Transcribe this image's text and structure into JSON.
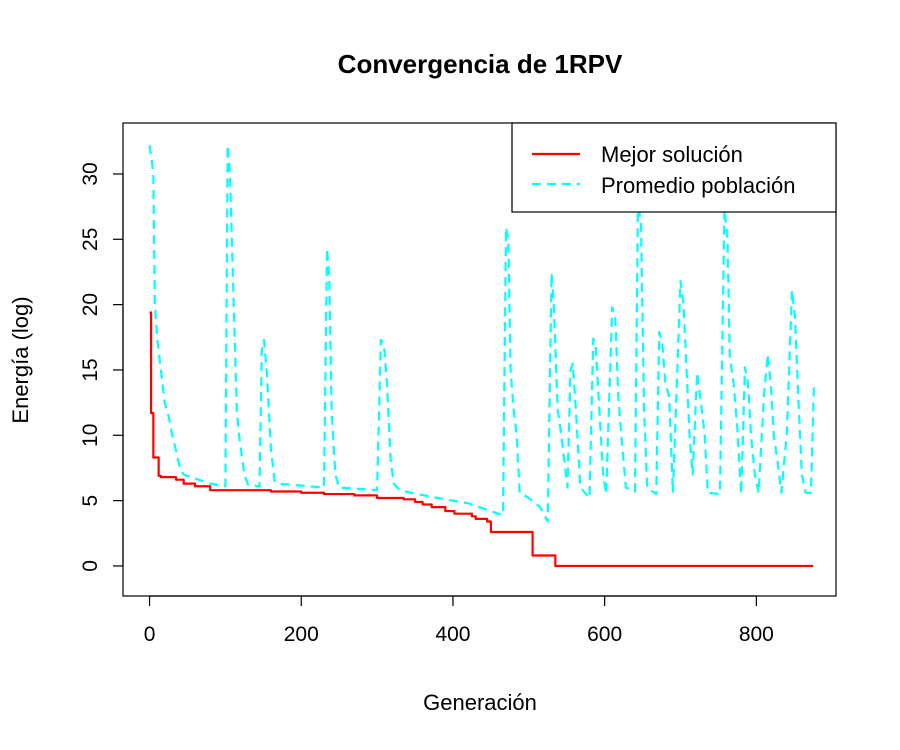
{
  "chart_data": {
    "type": "line",
    "title": "Convergencia de 1RPV",
    "xlabel": "Generación",
    "ylabel": "Energía (log)",
    "xlim": [
      -35,
      905
    ],
    "ylim": [
      -2.3,
      33.9
    ],
    "xticks": [
      0,
      200,
      400,
      600,
      800
    ],
    "yticks": [
      0,
      5,
      10,
      15,
      20,
      25,
      30
    ],
    "legend_position": "top-right",
    "series": [
      {
        "name": "Mejor solución",
        "color": "#ff0000",
        "style": "solid",
        "step": true,
        "points": [
          [
            0,
            19.4
          ],
          [
            2,
            11.7
          ],
          [
            5,
            8.3
          ],
          [
            12,
            6.9
          ],
          [
            15,
            6.8
          ],
          [
            35,
            6.6
          ],
          [
            45,
            6.3
          ],
          [
            60,
            6.1
          ],
          [
            80,
            5.8
          ],
          [
            130,
            5.8
          ],
          [
            160,
            5.7
          ],
          [
            200,
            5.6
          ],
          [
            230,
            5.5
          ],
          [
            270,
            5.4
          ],
          [
            300,
            5.2
          ],
          [
            335,
            5.1
          ],
          [
            350,
            4.9
          ],
          [
            360,
            4.7
          ],
          [
            372,
            4.5
          ],
          [
            390,
            4.2
          ],
          [
            402,
            4.0
          ],
          [
            425,
            3.8
          ],
          [
            430,
            3.6
          ],
          [
            445,
            3.4
          ],
          [
            450,
            2.6
          ],
          [
            460,
            2.6
          ],
          [
            500,
            2.6
          ],
          [
            505,
            0.8
          ],
          [
            530,
            0.8
          ],
          [
            535,
            0.0
          ],
          [
            875,
            0.0
          ]
        ]
      },
      {
        "name": "Promedio población",
        "color": "#00ffff",
        "style": "dashed",
        "step": false,
        "points": [
          [
            0,
            32.2
          ],
          [
            3,
            31
          ],
          [
            5,
            30
          ],
          [
            7,
            20
          ],
          [
            10,
            17.5
          ],
          [
            15,
            15
          ],
          [
            20,
            12.5
          ],
          [
            25,
            11.5
          ],
          [
            30,
            10
          ],
          [
            35,
            8.8
          ],
          [
            40,
            7.5
          ],
          [
            45,
            7
          ],
          [
            60,
            6.7
          ],
          [
            80,
            6.3
          ],
          [
            100,
            6.1
          ],
          [
            103,
            32.2
          ],
          [
            106,
            30
          ],
          [
            110,
            22
          ],
          [
            115,
            12
          ],
          [
            118,
            10
          ],
          [
            125,
            7
          ],
          [
            130,
            6.2
          ],
          [
            145,
            6.1
          ],
          [
            148,
            16.5
          ],
          [
            151,
            17.3
          ],
          [
            155,
            14.5
          ],
          [
            160,
            9
          ],
          [
            165,
            6.5
          ],
          [
            170,
            6.3
          ],
          [
            230,
            6.0
          ],
          [
            234,
            24.3
          ],
          [
            237,
            22
          ],
          [
            240,
            12
          ],
          [
            245,
            7
          ],
          [
            250,
            6.0
          ],
          [
            300,
            5.8
          ],
          [
            305,
            17.3
          ],
          [
            309,
            17.0
          ],
          [
            313,
            14
          ],
          [
            318,
            8
          ],
          [
            322,
            6.3
          ],
          [
            330,
            5.8
          ],
          [
            345,
            5.6
          ],
          [
            380,
            5.2
          ],
          [
            400,
            5.0
          ],
          [
            420,
            4.8
          ],
          [
            440,
            4.4
          ],
          [
            460,
            4.0
          ],
          [
            466,
            3.9
          ],
          [
            470,
            25.9
          ],
          [
            473,
            25
          ],
          [
            476,
            15
          ],
          [
            480,
            12
          ],
          [
            484,
            10
          ],
          [
            488,
            5.6
          ],
          [
            500,
            5.2
          ],
          [
            515,
            4.5
          ],
          [
            525,
            3.4
          ],
          [
            530,
            22.4
          ],
          [
            533,
            20
          ],
          [
            538,
            12
          ],
          [
            543,
            10
          ],
          [
            547,
            8
          ],
          [
            551,
            6
          ],
          [
            555,
            15
          ],
          [
            558,
            15.5
          ],
          [
            562,
            12
          ],
          [
            568,
            6
          ],
          [
            580,
            5.2
          ],
          [
            585,
            17.4
          ],
          [
            588,
            17
          ],
          [
            592,
            13
          ],
          [
            598,
            7
          ],
          [
            602,
            5.5
          ],
          [
            610,
            19.8
          ],
          [
            614,
            19
          ],
          [
            618,
            13
          ],
          [
            622,
            10
          ],
          [
            628,
            6.0
          ],
          [
            640,
            5.7
          ],
          [
            644,
            28
          ],
          [
            648,
            26
          ],
          [
            652,
            12
          ],
          [
            656,
            6
          ],
          [
            668,
            5.5
          ],
          [
            672,
            17.9
          ],
          [
            676,
            17
          ],
          [
            680,
            14
          ],
          [
            685,
            13
          ],
          [
            690,
            5.6
          ],
          [
            700,
            21.8
          ],
          [
            704,
            20
          ],
          [
            708,
            15
          ],
          [
            712,
            10
          ],
          [
            716,
            7
          ],
          [
            722,
            14.8
          ],
          [
            728,
            12
          ],
          [
            732,
            10
          ],
          [
            736,
            5.6
          ],
          [
            752,
            5.5
          ],
          [
            758,
            27.3
          ],
          [
            762,
            25
          ],
          [
            765,
            16
          ],
          [
            770,
            14
          ],
          [
            775,
            10.5
          ],
          [
            780,
            5.5
          ],
          [
            785,
            15.2
          ],
          [
            789,
            14
          ],
          [
            793,
            10
          ],
          [
            798,
            7
          ],
          [
            803,
            5.6
          ],
          [
            810,
            13
          ],
          [
            815,
            16.2
          ],
          [
            819,
            14
          ],
          [
            823,
            10
          ],
          [
            828,
            8
          ],
          [
            833,
            5.6
          ],
          [
            840,
            10
          ],
          [
            847,
            21.1
          ],
          [
            851,
            19
          ],
          [
            856,
            12
          ],
          [
            860,
            7
          ],
          [
            865,
            5.6
          ],
          [
            872,
            5.6
          ],
          [
            876,
            13.9
          ]
        ]
      }
    ]
  }
}
